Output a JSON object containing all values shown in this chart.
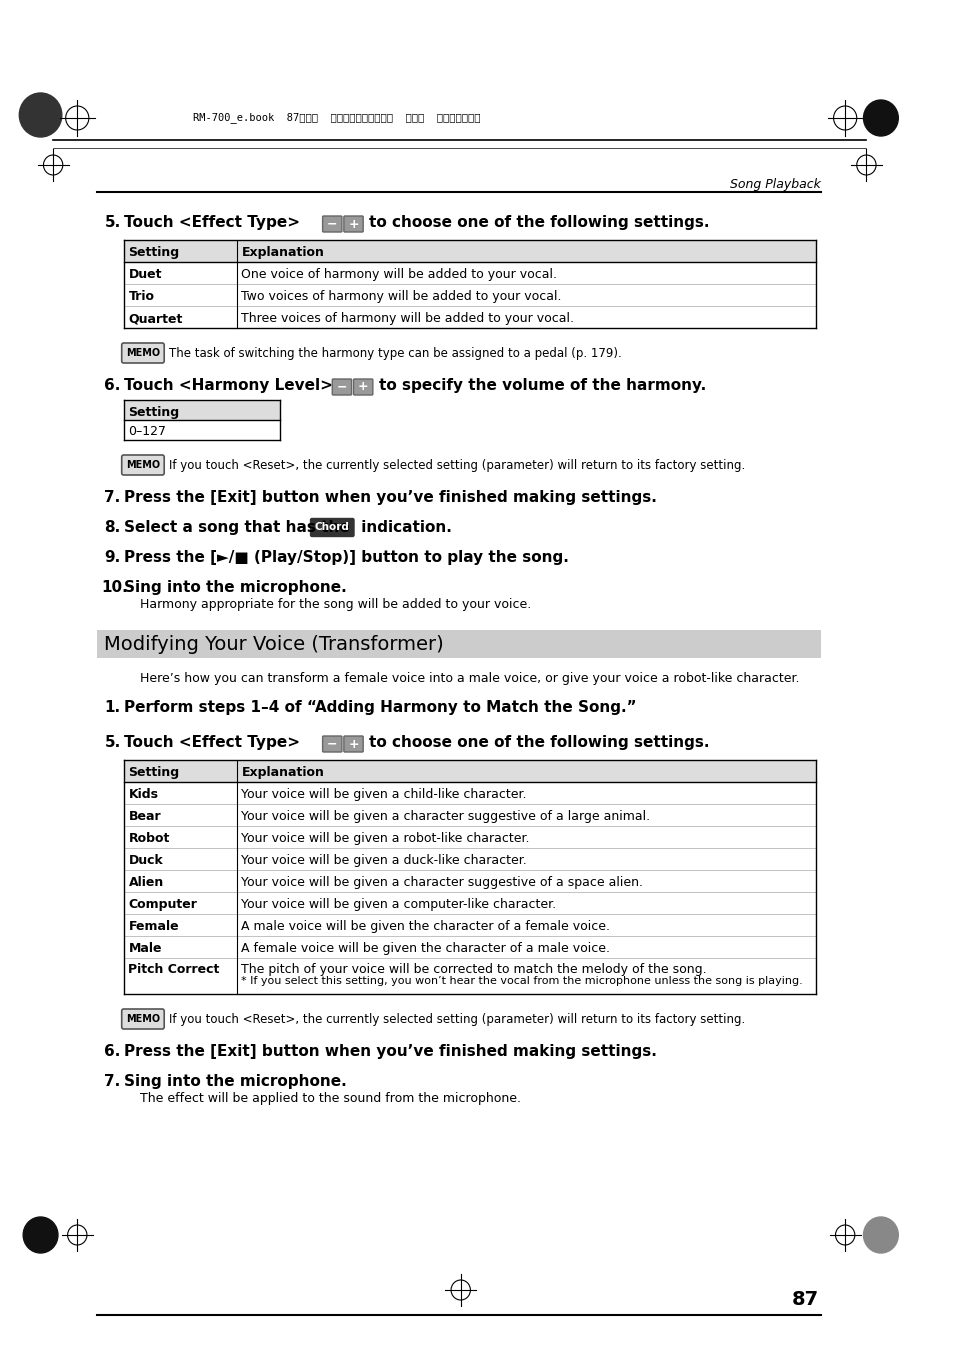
{
  "bg_color": "#ffffff",
  "page_number": "87",
  "section_title": "Song Playback",
  "header_text": "RM-700_e.book  87ページ  ２００９年３月１８日  水曜日  午前１１時５分",
  "table1_headers": [
    "Setting",
    "Explanation"
  ],
  "table1_rows": [
    [
      "Duet",
      "One voice of harmony will be added to your vocal."
    ],
    [
      "Trio",
      "Two voices of harmony will be added to your vocal."
    ],
    [
      "Quartet",
      "Three voices of harmony will be added to your vocal."
    ]
  ],
  "memo1_text": "The task of switching the harmony type can be assigned to a pedal (p. 179).",
  "table2_rows": [
    [
      "0–127"
    ]
  ],
  "memo2_text": "If you touch <Reset>, the currently selected setting (parameter) will return to its factory setting.",
  "step7_text": "Press the [Exit] button when you’ve finished making settings.",
  "step8_text": "Select a song that has the",
  "step8_suffix": " indication.",
  "step9_text": "Press the [►/■ (Play/Stop)] button to play the song.",
  "step10_bold": "Sing into the microphone.",
  "step10_sub": "Harmony appropriate for the song will be added to your voice.",
  "section2_banner": "Modifying Your Voice (Transformer)",
  "section2_intro": "Here’s how you can transform a female voice into a male voice, or give your voice a robot-like character.",
  "s2_step1_text": "Perform steps 1–4 of “Adding Harmony to Match the Song.”",
  "table3_headers": [
    "Setting",
    "Explanation"
  ],
  "table3_rows": [
    [
      "Kids",
      "Your voice will be given a child-like character."
    ],
    [
      "Bear",
      "Your voice will be given a character suggestive of a large animal."
    ],
    [
      "Robot",
      "Your voice will be given a robot-like character."
    ],
    [
      "Duck",
      "Your voice will be given a duck-like character."
    ],
    [
      "Alien",
      "Your voice will be given a character suggestive of a space alien."
    ],
    [
      "Computer",
      "Your voice will be given a computer-like character."
    ],
    [
      "Female",
      "A male voice will be given the character of a female voice."
    ],
    [
      "Male",
      "A female voice will be given the character of a male voice."
    ],
    [
      "Pitch Correct",
      "The pitch of your voice will be corrected to match the melody of the song.\n* If you select this setting, you won’t hear the vocal from the microphone unless the song is playing."
    ]
  ],
  "memo3_text": "If you touch <Reset>, the currently selected setting (parameter) will return to its factory setting.",
  "s2_step6_text": "Press the [Exit] button when you’ve finished making settings.",
  "s2_step7_bold": "Sing into the microphone.",
  "s2_step7_sub": "The effect will be applied to the sound from the microphone."
}
